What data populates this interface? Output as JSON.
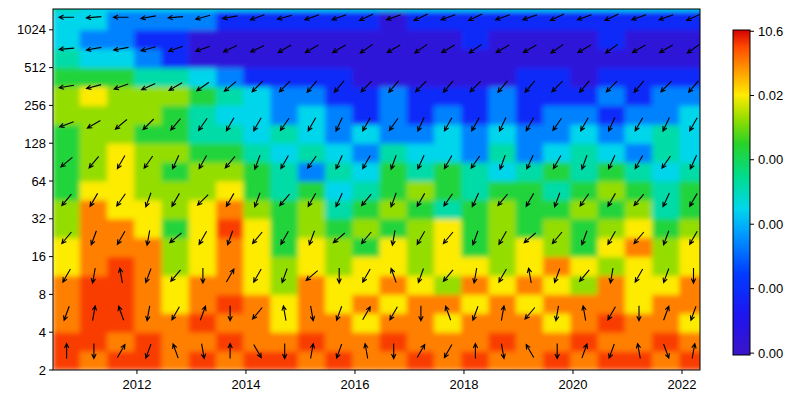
{
  "chart_data": {
    "type": "heatmap",
    "log": "y",
    "xlim": [
      2010.46,
      2022.33
    ],
    "xticks": [
      2012,
      2014,
      2016,
      2018,
      2020,
      2022
    ],
    "ylim": [
      2,
      1500
    ],
    "yticks": [
      2,
      4,
      8,
      16,
      32,
      64,
      128,
      256,
      512,
      1024
    ],
    "x": [
      2010.71,
      2011.21,
      2011.71,
      2012.21,
      2012.71,
      2013.21,
      2013.71,
      2014.21,
      2014.71,
      2015.21,
      2015.71,
      2016.21,
      2016.71,
      2017.21,
      2017.71,
      2018.21,
      2018.71,
      2019.21,
      2019.71,
      2020.21,
      2020.71,
      2021.21,
      2021.71,
      2022.21
    ],
    "y": [
      2.38,
      3.36,
      4.76,
      6.73,
      9.51,
      13.45,
      19.03,
      26.91,
      38.05,
      53.82,
      76.11,
      107.6,
      152.2,
      215.3,
      304.4,
      430.5,
      608.9,
      861.1,
      1217.8,
      1722.2
    ],
    "values": [
      [
        3,
        0.5,
        3,
        3,
        0.5,
        3,
        0.5,
        3,
        3,
        0.5,
        3,
        0.5,
        0.5,
        3,
        0.5,
        3,
        0.5,
        0.5,
        3,
        0.5,
        3,
        3,
        0.5,
        3
      ],
      [
        3,
        3,
        0.5,
        3,
        0.5,
        0.5,
        3,
        0.5,
        0.5,
        3,
        0.5,
        0.5,
        3,
        0.5,
        0.5,
        0.5,
        3,
        0.5,
        0.5,
        3,
        0.5,
        0.5,
        3,
        0.5
      ],
      [
        0.5,
        3,
        3,
        0.5,
        0.5,
        3,
        0.5,
        0.5,
        0.02,
        0.5,
        0.5,
        0.02,
        0.5,
        0.5,
        0.02,
        0.5,
        0.5,
        0.5,
        0.02,
        0.5,
        3,
        0.5,
        0.5,
        0.02
      ],
      [
        0.5,
        3,
        3,
        0.5,
        0.02,
        0.5,
        3,
        0.5,
        0.02,
        0.5,
        0.02,
        0.5,
        0.02,
        0.5,
        0.5,
        0.02,
        0.5,
        0.02,
        0.5,
        0.5,
        0.5,
        0.02,
        0.5,
        0.5
      ],
      [
        0.5,
        3,
        3,
        0.5,
        0.02,
        0.5,
        0.5,
        0.02,
        0.002,
        0.5,
        0.02,
        0.02,
        0.5,
        0.02,
        0.002,
        0.5,
        0.02,
        0.5,
        0.02,
        0.002,
        0.5,
        0.02,
        0.02,
        0.5
      ],
      [
        0.02,
        0.5,
        3,
        0.5,
        0.002,
        0.02,
        0.5,
        0.02,
        0.002,
        0.02,
        0.002,
        0.02,
        0.02,
        0.002,
        0.02,
        0.02,
        0.002,
        0.02,
        0.5,
        0.02,
        0.002,
        0.02,
        0.002,
        0.02
      ],
      [
        0.02,
        0.5,
        0.5,
        0.5,
        0.002,
        0.02,
        0.5,
        0.02,
        0.0001,
        0.02,
        0.002,
        0.0001,
        0.02,
        0.002,
        0.02,
        0.0001,
        0.002,
        0.02,
        0.002,
        0.0001,
        0.02,
        0.5,
        0.002,
        0.02
      ],
      [
        0.002,
        0.5,
        0.5,
        0.02,
        0.0001,
        0.02,
        3,
        0.02,
        0.0001,
        0.002,
        0.0001,
        0.002,
        0.0001,
        0.002,
        0.02,
        0.0001,
        0.002,
        0.0001,
        0.002,
        0.0001,
        0.002,
        0.02,
        0.0001,
        0.002
      ],
      [
        0.002,
        0.5,
        0.02,
        0.02,
        0.002,
        0.02,
        0.5,
        0.002,
        0.0001,
        0.002,
        3e-06,
        0.0001,
        0.002,
        0.0001,
        3e-06,
        0.0001,
        0.002,
        0.0001,
        0.0001,
        0.002,
        0.0001,
        0.002,
        3e-06,
        0.0001
      ],
      [
        0.0001,
        0.02,
        0.02,
        0.002,
        0.002,
        0.002,
        0.02,
        0.0001,
        3e-06,
        0.0001,
        3e-07,
        3e-06,
        0.0001,
        0.002,
        0.0001,
        3e-06,
        0.0001,
        0.0001,
        3e-06,
        0.0001,
        0.002,
        0.0001,
        3e-06,
        0.0001
      ],
      [
        0.0001,
        0.002,
        0.02,
        0.002,
        0.0001,
        0.002,
        0.002,
        0.0001,
        3e-06,
        1e-08,
        3e-06,
        3e-07,
        0.0001,
        3e-06,
        0.0001,
        3e-06,
        3e-07,
        3e-06,
        0.0001,
        3e-06,
        0.0001,
        3e-06,
        3e-07,
        3e-06
      ],
      [
        0.0001,
        0.002,
        0.02,
        0.002,
        0.002,
        0.0001,
        0.0001,
        3e-06,
        3e-07,
        3e-06,
        3e-07,
        1e-08,
        3e-06,
        3e-07,
        3e-07,
        1e-08,
        3e-06,
        1e-08,
        3e-07,
        3e-06,
        3e-07,
        1e-08,
        3e-06,
        3e-07
      ],
      [
        0.0001,
        0.002,
        0.002,
        0.0001,
        0.0001,
        3e-06,
        3e-06,
        3e-07,
        3e-06,
        3e-07,
        1e-08,
        3e-07,
        1e-08,
        1e-08,
        3e-07,
        1e-08,
        3e-07,
        1e-08,
        1e-08,
        3e-07,
        1e-08,
        3e-07,
        3e-06,
        3e-07
      ],
      [
        0.002,
        0.002,
        0.002,
        0.002,
        0.0001,
        3e-06,
        3e-07,
        3e-07,
        1e-08,
        3e-07,
        1e-08,
        1e-10,
        1e-08,
        1e-10,
        1e-08,
        1e-10,
        1e-08,
        1e-10,
        1e-08,
        1e-08,
        1e-10,
        1e-08,
        1e-08,
        3e-07
      ],
      [
        0.002,
        0.02,
        0.002,
        0.002,
        0.002,
        0.0001,
        3e-06,
        3e-07,
        1e-08,
        1e-08,
        1e-10,
        1e-10,
        1e-08,
        1e-10,
        1e-10,
        1e-10,
        1e-08,
        1e-10,
        1e-10,
        1e-10,
        1e-08,
        1e-10,
        1e-08,
        1e-08
      ],
      [
        0.0001,
        0.0001,
        0.0001,
        3e-06,
        3e-06,
        3e-07,
        1e-08,
        1e-10,
        1e-10,
        1e-10,
        1e-10,
        1e-12,
        1e-12,
        1e-12,
        1e-12,
        1e-12,
        1e-12,
        1e-10,
        1e-10,
        1e-12,
        1e-10,
        1e-10,
        1e-10,
        1e-10
      ],
      [
        3e-06,
        3e-07,
        3e-07,
        1e-08,
        1e-10,
        1e-12,
        1e-12,
        1e-12,
        1e-12,
        1e-12,
        1e-12,
        1e-12,
        1e-12,
        1e-12,
        1e-12,
        1e-12,
        1e-12,
        1e-12,
        1e-12,
        1e-12,
        1e-12,
        1e-12,
        1e-12,
        1e-12
      ],
      [
        3e-07,
        1e-08,
        1e-08,
        1e-10,
        1e-10,
        1e-12,
        1e-12,
        1e-12,
        1e-12,
        1e-12,
        1e-12,
        1e-12,
        1e-12,
        1e-12,
        1e-12,
        1e-10,
        1e-12,
        1e-12,
        1e-12,
        1e-12,
        1e-10,
        1e-12,
        1e-12,
        1e-12
      ],
      [
        3e-07,
        3e-07,
        1e-08,
        1e-08,
        1e-08,
        1e-08,
        1e-10,
        1e-10,
        1e-10,
        1e-10,
        1e-10,
        1e-10,
        1e-12,
        1e-10,
        1e-10,
        1e-10,
        1e-10,
        1e-10,
        1e-10,
        1e-10,
        1e-10,
        1e-10,
        1e-10,
        1e-10
      ],
      [
        3e-06,
        3e-07,
        3e-07,
        3e-07,
        3e-07,
        3e-07,
        3e-07,
        3e-07,
        3e-07,
        3e-07,
        3e-07,
        3e-07,
        3e-07,
        3e-07,
        3e-07,
        3e-07,
        3e-07,
        3e-07,
        3e-07,
        3e-07,
        3e-07,
        3e-07,
        3e-07,
        3e-07
      ]
    ],
    "colorbar": {
      "log": true,
      "range": [
        2e-13,
        12
      ],
      "ticks": [
        {
          "value": 10.6,
          "label": "10.6"
        },
        {
          "value": 0.02,
          "label": "0.02"
        },
        {
          "value": 3.8e-05,
          "label": "0.00"
        },
        {
          "value": 7e-08,
          "label": "0.00"
        },
        {
          "value": 1.3e-10,
          "label": "0.00"
        },
        {
          "value": 2.4e-13,
          "label": "0.00"
        }
      ]
    },
    "phase": {
      "x": [
        2010.71,
        2011.21,
        2011.71,
        2012.21,
        2012.71,
        2013.21,
        2013.71,
        2014.21,
        2014.71,
        2015.21,
        2015.71,
        2016.21,
        2016.71,
        2017.21,
        2017.71,
        2018.21,
        2018.71,
        2019.21,
        2019.71,
        2020.21,
        2020.71,
        2021.21,
        2021.71,
        2022.21
      ],
      "y": [
        2.83,
        5.66,
        11.3,
        22.6,
        45.3,
        90.5,
        181,
        362,
        724,
        1290
      ],
      "values": [
        [
          90,
          270,
          60,
          250,
          110,
          280,
          90,
          300,
          270,
          80,
          250,
          100,
          270,
          60,
          240,
          90,
          280,
          120,
          270,
          70,
          250,
          100,
          290,
          80
        ],
        [
          250,
          80,
          110,
          260,
          240,
          70,
          270,
          230,
          100,
          280,
          250,
          60,
          240,
          270,
          110,
          250,
          80,
          230,
          260,
          100,
          240,
          270,
          70,
          250
        ],
        [
          240,
          260,
          100,
          250,
          230,
          270,
          60,
          240,
          250,
          220,
          270,
          240,
          110,
          250,
          230,
          260,
          240,
          100,
          250,
          230,
          260,
          240,
          250,
          270
        ],
        [
          230,
          250,
          240,
          260,
          220,
          240,
          250,
          230,
          240,
          250,
          220,
          230,
          260,
          240,
          230,
          250,
          240,
          220,
          230,
          250,
          240,
          230,
          250,
          240
        ],
        [
          230,
          240,
          235,
          250,
          240,
          225,
          240,
          250,
          230,
          240,
          245,
          230,
          250,
          240,
          235,
          245,
          230,
          240,
          250,
          235,
          240,
          230,
          245,
          240
        ],
        [
          220,
          230,
          240,
          235,
          245,
          240,
          230,
          250,
          240,
          235,
          245,
          240,
          250,
          245,
          240,
          235,
          250,
          245,
          240,
          250,
          245,
          240,
          235,
          245
        ],
        [
          200,
          210,
          220,
          225,
          230,
          235,
          240,
          240,
          235,
          240,
          245,
          240,
          235,
          245,
          240,
          240,
          245,
          240,
          235,
          240,
          245,
          240,
          245,
          240
        ],
        [
          190,
          195,
          200,
          205,
          210,
          215,
          220,
          225,
          225,
          230,
          230,
          225,
          230,
          225,
          230,
          225,
          230,
          230,
          225,
          230,
          225,
          230,
          225,
          230
        ],
        [
          185,
          190,
          190,
          195,
          200,
          200,
          205,
          205,
          210,
          210,
          210,
          215,
          210,
          215,
          210,
          215,
          210,
          210,
          215,
          210,
          215,
          210,
          210,
          215
        ],
        [
          180,
          185,
          180,
          190,
          185,
          195,
          190,
          200,
          195,
          200,
          200,
          205,
          200,
          205,
          200,
          205,
          200,
          200,
          205,
          200,
          205,
          200,
          200,
          205
        ]
      ]
    }
  }
}
